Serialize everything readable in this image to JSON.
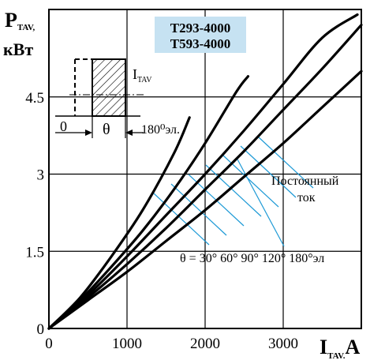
{
  "chart_data": {
    "type": "line",
    "title_lines": [
      "T293-4000",
      "T593-4000"
    ],
    "title_bg": "#c6e2f2",
    "ylabel_main": "P",
    "ylabel_sub": "TAV,",
    "ylabel_unit": "кВт",
    "xlabel_main": "I",
    "xlabel_sub": "TAV.",
    "xlabel_unit": "A",
    "xlim": [
      0,
      4000
    ],
    "ylim": [
      0,
      6.2
    ],
    "xticks": [
      0,
      1000,
      2000,
      3000
    ],
    "yticks": [
      0,
      1.5,
      3,
      4.5
    ],
    "x_tick_labels": [
      "0",
      "1000",
      "2000",
      "3000"
    ],
    "y_tick_labels": [
      "0",
      "1.5",
      "3",
      "4.5"
    ],
    "grid": true,
    "series": [
      {
        "name": "30°",
        "x": [
          0,
          400,
          800,
          1200,
          1600,
          1800
        ],
        "y": [
          0,
          0.6,
          1.4,
          2.3,
          3.4,
          4.1
        ]
      },
      {
        "name": "60°",
        "x": [
          0,
          400,
          800,
          1200,
          1600,
          2000,
          2400,
          2550
        ],
        "y": [
          0,
          0.55,
          1.2,
          1.9,
          2.7,
          3.6,
          4.6,
          4.9
        ]
      },
      {
        "name": "90°",
        "x": [
          0,
          500,
          1000,
          1500,
          2000,
          2500,
          3000,
          3500,
          3950
        ],
        "y": [
          0,
          0.65,
          1.4,
          2.2,
          3.0,
          3.85,
          4.75,
          5.65,
          6.1
        ]
      },
      {
        "name": "120°",
        "x": [
          0,
          500,
          1000,
          1500,
          2000,
          2500,
          3000,
          3500,
          4000
        ],
        "y": [
          0,
          0.6,
          1.25,
          1.95,
          2.7,
          3.45,
          4.25,
          5.05,
          5.9
        ]
      },
      {
        "name": "180°",
        "x": [
          0,
          500,
          1000,
          1500,
          2000,
          2500,
          3000,
          3500,
          4000
        ],
        "y": [
          0,
          0.55,
          1.1,
          1.7,
          2.3,
          2.95,
          3.6,
          4.3,
          5.0
        ]
      }
    ],
    "theta_label": "θ = 30° 60° 90° 120° 180°эл",
    "dc_label_lines": [
      "Постоянный",
      "ток"
    ],
    "inset": {
      "current_label": "I",
      "current_sub": "TAV",
      "zero_label": "0",
      "theta": "θ",
      "end_label": "180⁰эл."
    },
    "colors": {
      "hatch": "#1e9ad6",
      "curve": "#000000",
      "title_bg": "#c6e2f2"
    }
  }
}
